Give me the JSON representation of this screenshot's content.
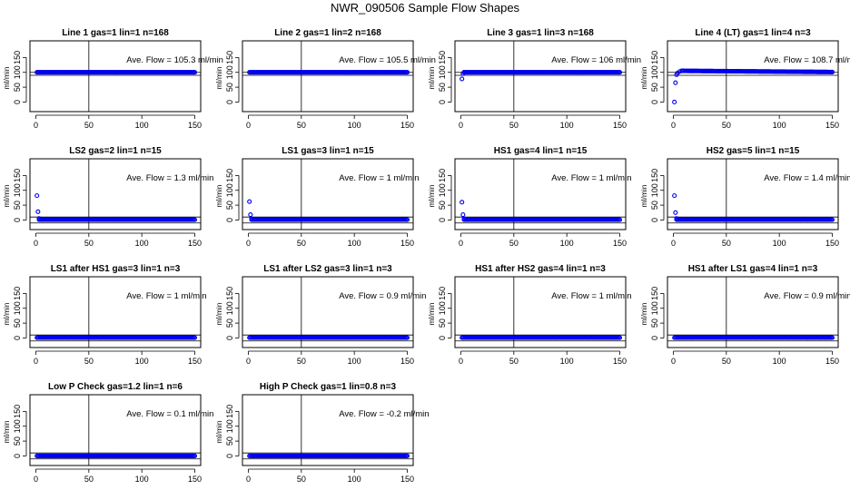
{
  "figure": {
    "title": "NWR_090506  Sample Flow Shapes",
    "point_color": "#0000ee"
  },
  "chart_data": [
    {
      "type": "scatter",
      "title": "Line 1 gas=1 lin=1 n=168",
      "annotation": "Ave. Flow =  105.3  ml/min",
      "ylabel": "ml/min",
      "xlim": [
        0,
        150
      ],
      "ylim": [
        -20,
        200
      ],
      "xticks": [
        "0",
        "50",
        "100",
        "150"
      ],
      "yticks": [
        "0",
        "50",
        "100",
        "150"
      ],
      "hlines": [
        100,
        90
      ],
      "vline": 50,
      "series": [
        {
          "x": [
            1,
            150
          ],
          "y": [
            100,
            100
          ],
          "style": "flat"
        }
      ]
    },
    {
      "type": "scatter",
      "title": "Line 2 gas=1 lin=2 n=168",
      "annotation": "Ave. Flow =  105.5  ml/min",
      "ylabel": "ml/min",
      "xlim": [
        0,
        150
      ],
      "ylim": [
        -20,
        200
      ],
      "xticks": [
        "0",
        "50",
        "100",
        "150"
      ],
      "yticks": [
        "0",
        "50",
        "100",
        "150"
      ],
      "hlines": [
        100,
        90
      ],
      "vline": 50,
      "series": [
        {
          "x": [
            1,
            150
          ],
          "y": [
            100,
            100
          ],
          "style": "flat"
        }
      ]
    },
    {
      "type": "scatter",
      "title": "Line 3 gas=1 lin=3 n=168",
      "annotation": "Ave. Flow =  106  ml/min",
      "ylabel": "ml/min",
      "xlim": [
        0,
        150
      ],
      "ylim": [
        -20,
        200
      ],
      "xticks": [
        "0",
        "50",
        "100",
        "150"
      ],
      "yticks": [
        "0",
        "50",
        "100",
        "150"
      ],
      "hlines": [
        100,
        90
      ],
      "vline": 50,
      "series": [
        {
          "x": [
            1,
            2,
            3
          ],
          "y": [
            78,
            96,
            100
          ],
          "style": "start"
        },
        {
          "x": [
            3,
            150
          ],
          "y": [
            100,
            100
          ],
          "style": "flat"
        }
      ]
    },
    {
      "type": "scatter",
      "title": "Line 4 (LT) gas=1 lin=4 n=3",
      "annotation": "Ave. Flow =  108.7  ml/min",
      "ylabel": "ml/min",
      "xlim": [
        0,
        150
      ],
      "ylim": [
        -20,
        200
      ],
      "xticks": [
        "0",
        "50",
        "100",
        "150"
      ],
      "yticks": [
        "0",
        "50",
        "100",
        "150"
      ],
      "hlines": [
        100,
        90
      ],
      "vline": 50,
      "series": [
        {
          "x": [
            1,
            2,
            3,
            4,
            6,
            8
          ],
          "y": [
            0,
            65,
            92,
            98,
            103,
            105
          ],
          "style": "start"
        },
        {
          "x": [
            8,
            150
          ],
          "y": [
            105,
            101
          ],
          "style": "flat"
        }
      ]
    },
    {
      "type": "scatter",
      "title": "LS2 gas=2 lin=1 n=15",
      "annotation": "Ave. Flow =  1.3  ml/min",
      "ylabel": "ml/min",
      "xlim": [
        0,
        150
      ],
      "ylim": [
        -20,
        200
      ],
      "xticks": [
        "0",
        "50",
        "100",
        "150"
      ],
      "yticks": [
        "0",
        "50",
        "100",
        "150"
      ],
      "hlines": [
        10,
        -10
      ],
      "vline": 50,
      "series": [
        {
          "x": [
            1,
            2,
            3
          ],
          "y": [
            82,
            28,
            5
          ],
          "style": "start"
        },
        {
          "x": [
            3,
            150
          ],
          "y": [
            1,
            1
          ],
          "style": "flat"
        }
      ]
    },
    {
      "type": "scatter",
      "title": "LS1 gas=3 lin=1 n=15",
      "annotation": "Ave. Flow =  1  ml/min",
      "ylabel": "ml/min",
      "xlim": [
        0,
        150
      ],
      "ylim": [
        -20,
        200
      ],
      "xticks": [
        "0",
        "50",
        "100",
        "150"
      ],
      "yticks": [
        "0",
        "50",
        "100",
        "150"
      ],
      "hlines": [
        10,
        -10
      ],
      "vline": 50,
      "series": [
        {
          "x": [
            1,
            2,
            3
          ],
          "y": [
            62,
            18,
            4
          ],
          "style": "start"
        },
        {
          "x": [
            3,
            150
          ],
          "y": [
            1,
            1
          ],
          "style": "flat"
        }
      ]
    },
    {
      "type": "scatter",
      "title": "HS1 gas=4 lin=1 n=15",
      "annotation": "Ave. Flow =  1  ml/min",
      "ylabel": "ml/min",
      "xlim": [
        0,
        150
      ],
      "ylim": [
        -20,
        200
      ],
      "xticks": [
        "0",
        "50",
        "100",
        "150"
      ],
      "yticks": [
        "0",
        "50",
        "100",
        "150"
      ],
      "hlines": [
        10,
        -10
      ],
      "vline": 50,
      "series": [
        {
          "x": [
            1,
            2,
            3
          ],
          "y": [
            60,
            18,
            4
          ],
          "style": "start"
        },
        {
          "x": [
            3,
            150
          ],
          "y": [
            1,
            1
          ],
          "style": "flat"
        }
      ]
    },
    {
      "type": "scatter",
      "title": "HS2 gas=5 lin=1 n=15",
      "annotation": "Ave. Flow =  1.4  ml/min",
      "ylabel": "ml/min",
      "xlim": [
        0,
        150
      ],
      "ylim": [
        -20,
        200
      ],
      "xticks": [
        "0",
        "50",
        "100",
        "150"
      ],
      "yticks": [
        "0",
        "50",
        "100",
        "150"
      ],
      "hlines": [
        10,
        -10
      ],
      "vline": 50,
      "series": [
        {
          "x": [
            1,
            2,
            3
          ],
          "y": [
            82,
            25,
            5
          ],
          "style": "start"
        },
        {
          "x": [
            3,
            150
          ],
          "y": [
            1,
            1
          ],
          "style": "flat"
        }
      ]
    },
    {
      "type": "scatter",
      "title": "LS1 after HS1 gas=3 lin=1 n=3",
      "annotation": "Ave. Flow =  1  ml/min",
      "ylabel": "ml/min",
      "xlim": [
        0,
        150
      ],
      "ylim": [
        -20,
        200
      ],
      "xticks": [
        "0",
        "50",
        "100",
        "150"
      ],
      "yticks": [
        "0",
        "50",
        "100",
        "150"
      ],
      "hlines": [
        10,
        -10
      ],
      "vline": 50,
      "series": [
        {
          "x": [
            1,
            150
          ],
          "y": [
            1,
            1
          ],
          "style": "flat"
        }
      ]
    },
    {
      "type": "scatter",
      "title": "LS1 after LS2 gas=3 lin=1 n=3",
      "annotation": "Ave. Flow =  0.9  ml/min",
      "ylabel": "ml/min",
      "xlim": [
        0,
        150
      ],
      "ylim": [
        -20,
        200
      ],
      "xticks": [
        "0",
        "50",
        "100",
        "150"
      ],
      "yticks": [
        "0",
        "50",
        "100",
        "150"
      ],
      "hlines": [
        10,
        -10
      ],
      "vline": 50,
      "series": [
        {
          "x": [
            1,
            150
          ],
          "y": [
            1,
            1
          ],
          "style": "flat"
        }
      ]
    },
    {
      "type": "scatter",
      "title": "HS1 after HS2 gas=4 lin=1 n=3",
      "annotation": "Ave. Flow =  1  ml/min",
      "ylabel": "ml/min",
      "xlim": [
        0,
        150
      ],
      "ylim": [
        -20,
        200
      ],
      "xticks": [
        "0",
        "50",
        "100",
        "150"
      ],
      "yticks": [
        "0",
        "50",
        "100",
        "150"
      ],
      "hlines": [
        10,
        -10
      ],
      "vline": 50,
      "series": [
        {
          "x": [
            1,
            150
          ],
          "y": [
            1,
            1
          ],
          "style": "flat"
        }
      ]
    },
    {
      "type": "scatter",
      "title": "HS1 after LS1 gas=4 lin=1 n=3",
      "annotation": "Ave. Flow =  0.9  ml/min",
      "ylabel": "ml/min",
      "xlim": [
        0,
        150
      ],
      "ylim": [
        -20,
        200
      ],
      "xticks": [
        "0",
        "50",
        "100",
        "150"
      ],
      "yticks": [
        "0",
        "50",
        "100",
        "150"
      ],
      "hlines": [
        10,
        -10
      ],
      "vline": 50,
      "series": [
        {
          "x": [
            1,
            150
          ],
          "y": [
            1,
            1
          ],
          "style": "flat"
        }
      ]
    },
    {
      "type": "scatter",
      "title": "Low P Check gas=1.2 lin=1 n=6",
      "annotation": "Ave. Flow =  0.1  ml/min",
      "ylabel": "ml/min",
      "xlim": [
        0,
        150
      ],
      "ylim": [
        -20,
        200
      ],
      "xticks": [
        "0",
        "50",
        "100",
        "150"
      ],
      "yticks": [
        "0",
        "50",
        "100",
        "150"
      ],
      "hlines": [
        10,
        -10
      ],
      "vline": 50,
      "series": [
        {
          "x": [
            1,
            150
          ],
          "y": [
            0,
            0
          ],
          "style": "flat"
        }
      ]
    },
    {
      "type": "scatter",
      "title": "High P Check gas=1 lin=0.8 n=3",
      "annotation": "Ave. Flow =  -0.2  ml/min",
      "ylabel": "ml/min",
      "xlim": [
        0,
        150
      ],
      "ylim": [
        -20,
        200
      ],
      "xticks": [
        "0",
        "50",
        "100",
        "150"
      ],
      "yticks": [
        "0",
        "50",
        "100",
        "150"
      ],
      "hlines": [
        10,
        -10
      ],
      "vline": 50,
      "series": [
        {
          "x": [
            1,
            150
          ],
          "y": [
            0,
            0
          ],
          "style": "flat"
        }
      ]
    }
  ]
}
